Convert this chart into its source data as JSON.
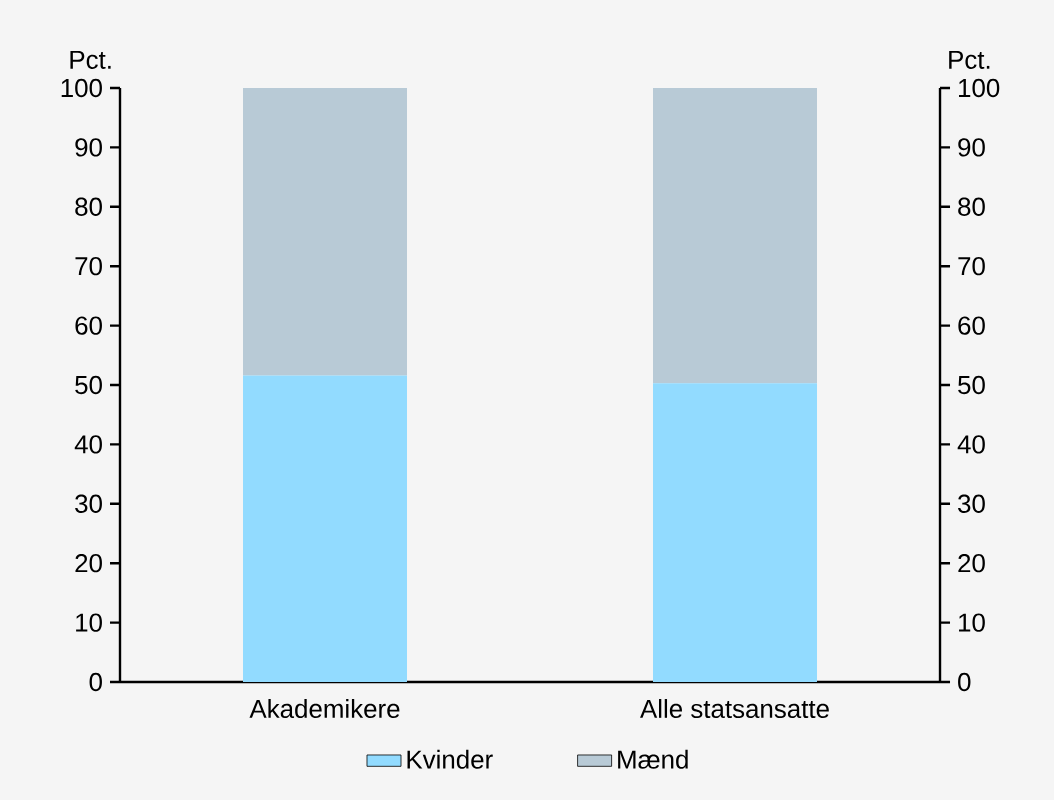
{
  "chart_data": {
    "type": "bar",
    "stacked": true,
    "categories": [
      "Akademikere",
      "Alle statsansatte"
    ],
    "series": [
      {
        "name": "Kvinder",
        "color": "#92dbff",
        "values": [
          51.6,
          50.3
        ]
      },
      {
        "name": "Mænd",
        "color": "#b8cad6",
        "values": [
          48.4,
          49.7
        ]
      }
    ],
    "ylabel": "Pct.",
    "y2label": "Pct.",
    "ylim": [
      0,
      100
    ],
    "yticks": [
      0,
      10,
      20,
      30,
      40,
      50,
      60,
      70,
      80,
      90,
      100
    ],
    "y2lim": [
      0,
      100
    ],
    "y2ticks": [
      0,
      10,
      20,
      30,
      40,
      50,
      60,
      70,
      80,
      90,
      100
    ],
    "grid": false,
    "legend": "bottom"
  }
}
